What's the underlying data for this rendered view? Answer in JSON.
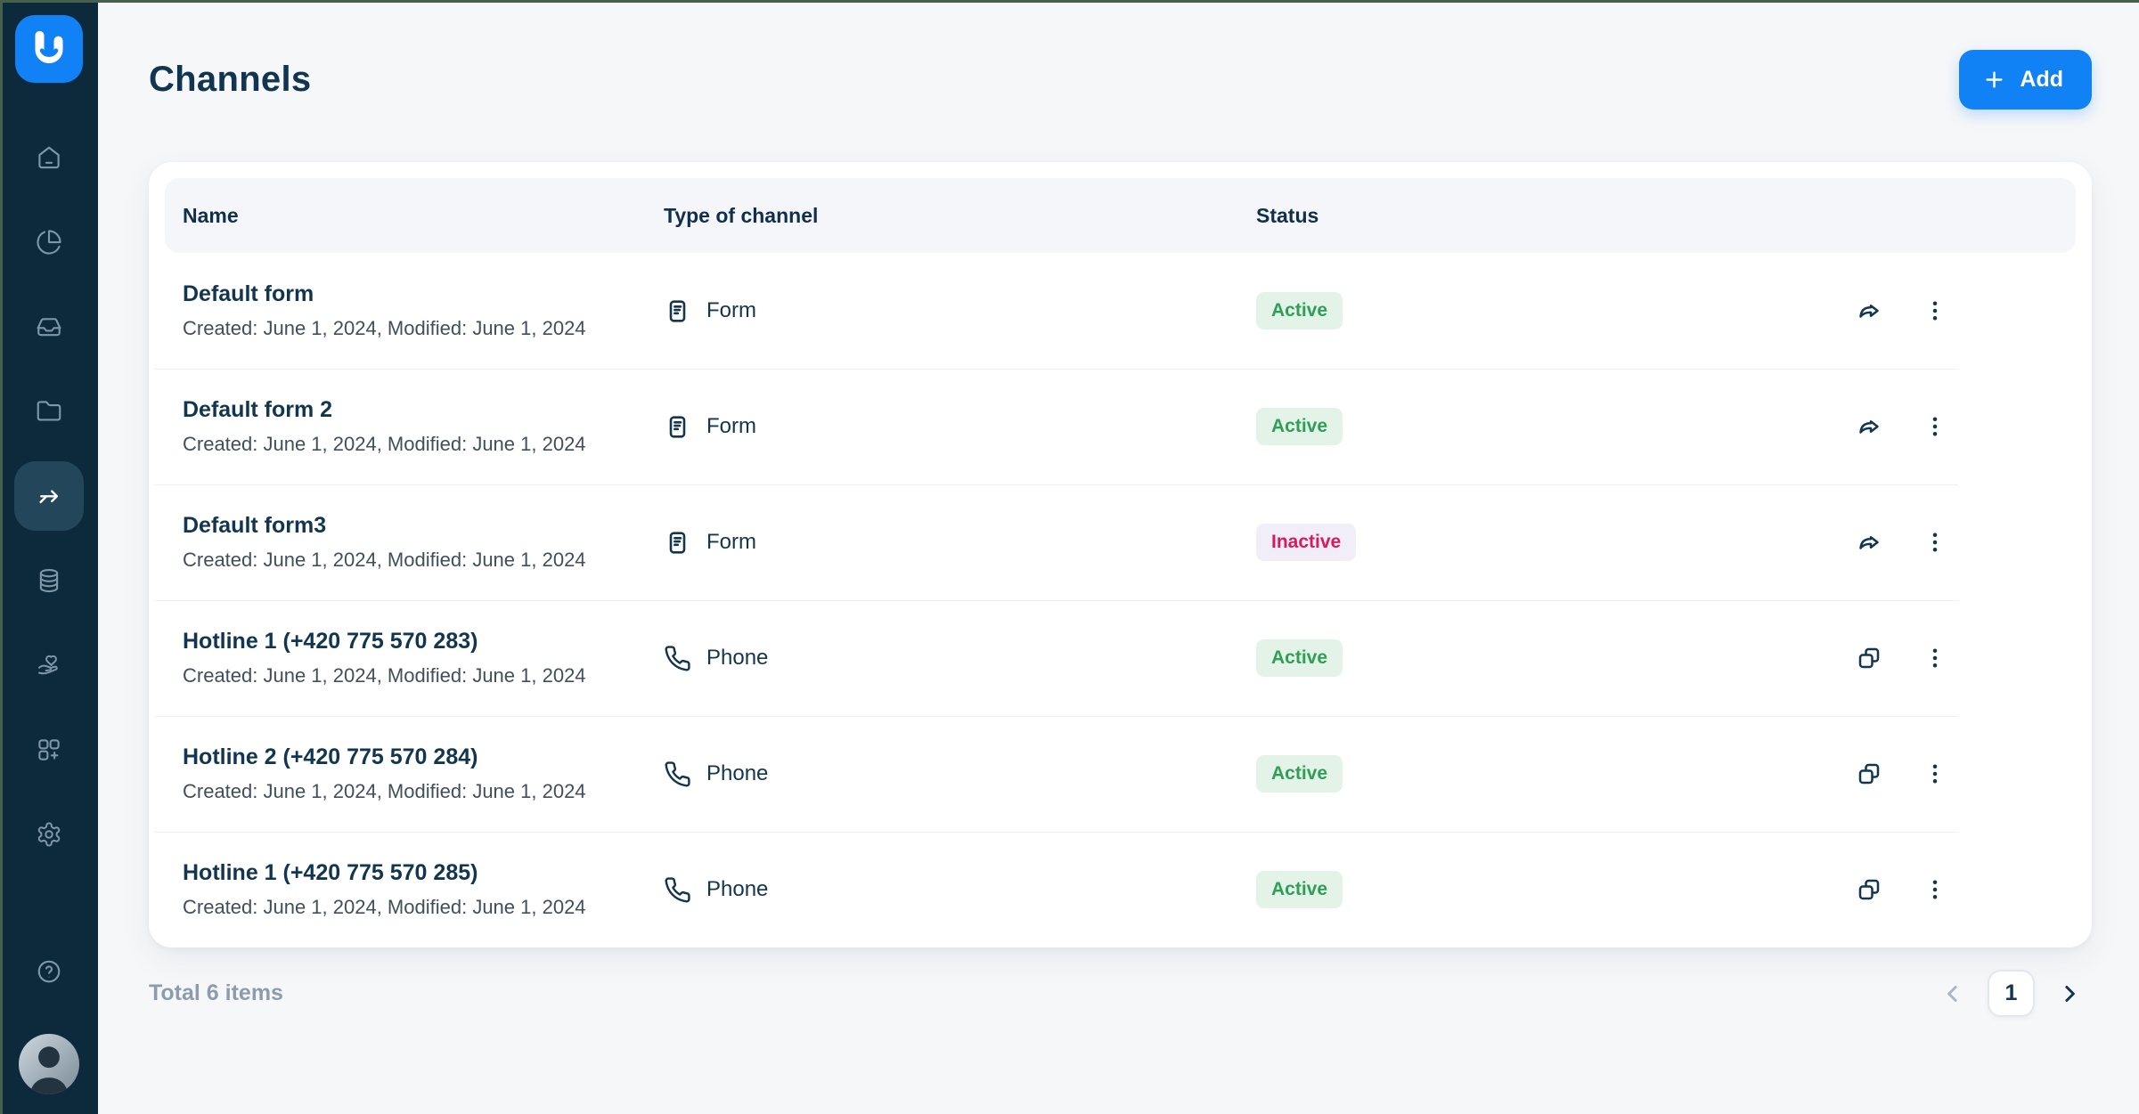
{
  "sidebar": {
    "logo_icon": "app-logo-u",
    "items": [
      {
        "icon": "home-icon",
        "active": false
      },
      {
        "icon": "pie-chart-icon",
        "active": false
      },
      {
        "icon": "inbox-icon",
        "active": false
      },
      {
        "icon": "folder-icon",
        "active": false
      },
      {
        "icon": "channels-arrow-icon",
        "active": true
      },
      {
        "icon": "database-icon",
        "active": false
      },
      {
        "icon": "hand-heart-icon",
        "active": false
      },
      {
        "icon": "apps-plus-icon",
        "active": false
      },
      {
        "icon": "settings-gear-icon",
        "active": false
      }
    ],
    "help_icon": "help-circle-icon",
    "avatar": "user-avatar"
  },
  "header": {
    "title": "Channels",
    "add_button": {
      "label": "Add",
      "icon": "plus-icon"
    }
  },
  "table": {
    "columns": [
      "Name",
      "Type of channel",
      "Status"
    ],
    "rows": [
      {
        "name": "Default form",
        "meta": "Created: June 1, 2024, Modified: June 1, 2024",
        "type": {
          "icon": "form-icon",
          "label": "Form"
        },
        "status": {
          "label": "Active",
          "variant": "active"
        },
        "actions": [
          "share-icon",
          "kebab-menu-icon"
        ]
      },
      {
        "name": "Default form 2",
        "meta": "Created: June 1, 2024, Modified: June 1, 2024",
        "type": {
          "icon": "form-icon",
          "label": "Form"
        },
        "status": {
          "label": "Active",
          "variant": "active"
        },
        "actions": [
          "share-icon",
          "kebab-menu-icon"
        ]
      },
      {
        "name": "Default form3",
        "meta": "Created: June 1, 2024, Modified: June 1, 2024",
        "type": {
          "icon": "form-icon",
          "label": "Form"
        },
        "status": {
          "label": "Inactive",
          "variant": "inactive"
        },
        "actions": [
          "share-icon",
          "kebab-menu-icon"
        ]
      },
      {
        "name": "Hotline 1 (+420 775 570 283)",
        "meta": "Created: June 1, 2024, Modified: June 1, 2024",
        "type": {
          "icon": "phone-icon",
          "label": "Phone"
        },
        "status": {
          "label": "Active",
          "variant": "active"
        },
        "actions": [
          "copy-icon",
          "kebab-menu-icon"
        ]
      },
      {
        "name": "Hotline 2 (+420 775 570 284)",
        "meta": "Created: June 1, 2024, Modified: June 1, 2024",
        "type": {
          "icon": "phone-icon",
          "label": "Phone"
        },
        "status": {
          "label": "Active",
          "variant": "active"
        },
        "actions": [
          "copy-icon",
          "kebab-menu-icon"
        ]
      },
      {
        "name": "Hotline 1 (+420 775 570 285)",
        "meta": "Created: June 1, 2024, Modified: June 1, 2024",
        "type": {
          "icon": "phone-icon",
          "label": "Phone"
        },
        "status": {
          "label": "Active",
          "variant": "active"
        },
        "actions": [
          "copy-icon",
          "kebab-menu-icon"
        ]
      }
    ]
  },
  "footer": {
    "total": "Total 6 items",
    "pagination": {
      "prev_icon": "chevron-left-icon",
      "page": "1",
      "next_icon": "chevron-right-icon"
    }
  },
  "colors": {
    "accent_blue": "#1082F6",
    "sidebar_bg": "#0D2A3D",
    "sidebar_active_bg": "#24465B",
    "title_navy": "#113450",
    "active_badge_text": "#2F9E57",
    "active_badge_bg": "#E4F3E8",
    "inactive_badge_text": "#D8195D",
    "inactive_badge_bg": "#F1EEF8",
    "header_strip_bg": "#F4F6FA",
    "footer_text": "#8D9CAC"
  }
}
